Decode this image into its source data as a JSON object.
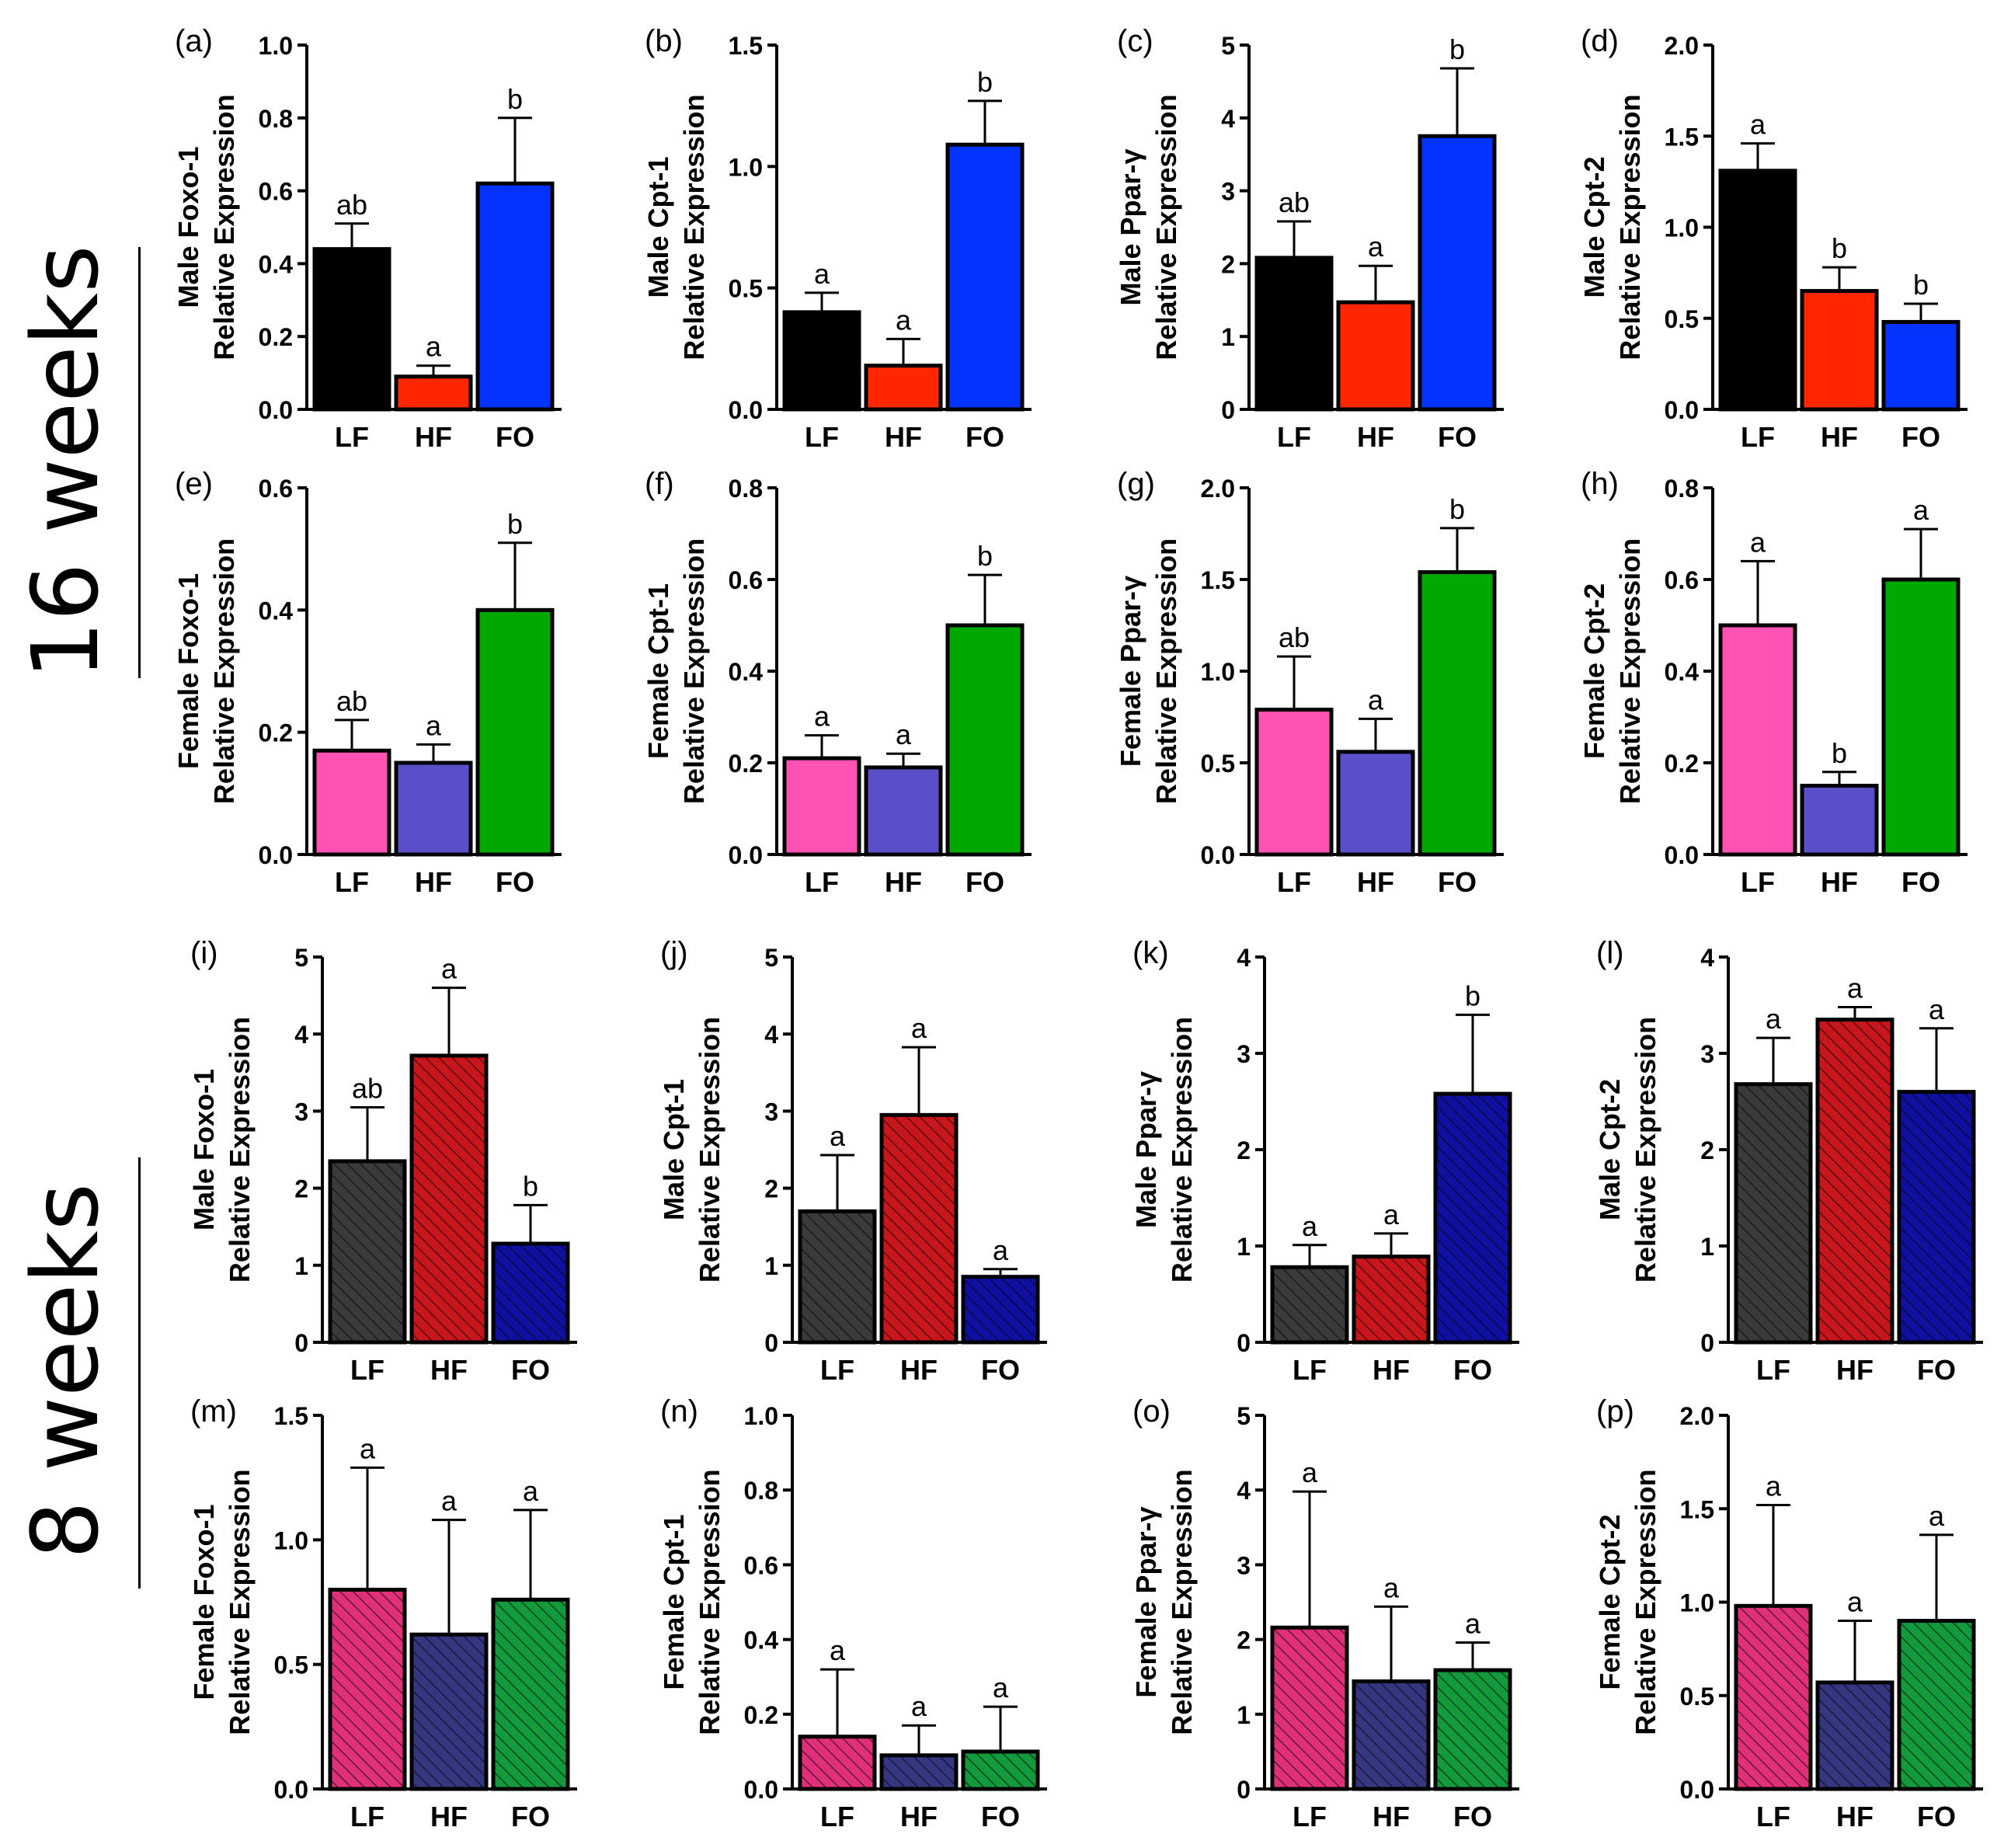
{
  "section_labels": [
    "16 weeks",
    "8 weeks"
  ],
  "chart_data": [
    {
      "panel": "(a)",
      "type": "bar",
      "ylabel_top": "Male Foxo-1",
      "ylabel_bottom": "Relative Expression",
      "categories": [
        "LF",
        "HF",
        "FO"
      ],
      "values": [
        0.44,
        0.09,
        0.62
      ],
      "errors": [
        0.07,
        0.03,
        0.18
      ],
      "letters": [
        "ab",
        "a",
        "b"
      ],
      "colors": [
        "#000000",
        "#ff2600",
        "#0432ff"
      ],
      "hatched": false,
      "ylim": [
        0,
        1.0
      ],
      "ticks": [
        0,
        0.2,
        0.4,
        0.6,
        0.8,
        1.0
      ],
      "tick_labels": [
        "0.0",
        "0.2",
        "0.4",
        "0.6",
        "0.8",
        "1.0"
      ]
    },
    {
      "panel": "(b)",
      "type": "bar",
      "ylabel_top": "Male Cpt-1",
      "ylabel_bottom": "Relative Expression",
      "categories": [
        "LF",
        "HF",
        "FO"
      ],
      "values": [
        0.4,
        0.18,
        1.09
      ],
      "errors": [
        0.08,
        0.11,
        0.18
      ],
      "letters": [
        "a",
        "a",
        "b"
      ],
      "colors": [
        "#000000",
        "#ff2600",
        "#0432ff"
      ],
      "hatched": false,
      "ylim": [
        0,
        1.5
      ],
      "ticks": [
        0,
        0.5,
        1.0,
        1.5
      ],
      "tick_labels": [
        "0.0",
        "0.5",
        "1.0",
        "1.5"
      ]
    },
    {
      "panel": "(c)",
      "type": "bar",
      "ylabel_top": "Male Ppar-γ",
      "ylabel_bottom": "Relative Expression",
      "categories": [
        "LF",
        "HF",
        "FO"
      ],
      "values": [
        2.08,
        1.47,
        3.75
      ],
      "errors": [
        0.5,
        0.5,
        0.93
      ],
      "letters": [
        "ab",
        "a",
        "b"
      ],
      "colors": [
        "#000000",
        "#ff2600",
        "#0432ff"
      ],
      "hatched": false,
      "ylim": [
        0,
        5
      ],
      "ticks": [
        0,
        1,
        2,
        3,
        4,
        5
      ],
      "tick_labels": [
        "0",
        "1",
        "2",
        "3",
        "4",
        "5"
      ]
    },
    {
      "panel": "(d)",
      "type": "bar",
      "ylabel_top": "Male Cpt-2",
      "ylabel_bottom": "Relative Expression",
      "categories": [
        "LF",
        "HF",
        "FO"
      ],
      "values": [
        1.31,
        0.65,
        0.48
      ],
      "errors": [
        0.15,
        0.13,
        0.1
      ],
      "letters": [
        "a",
        "b",
        "b"
      ],
      "colors": [
        "#000000",
        "#ff2600",
        "#0432ff"
      ],
      "hatched": false,
      "ylim": [
        0,
        2.0
      ],
      "ticks": [
        0,
        0.5,
        1.0,
        1.5,
        2.0
      ],
      "tick_labels": [
        "0.0",
        "0.5",
        "1.0",
        "1.5",
        "2.0"
      ]
    },
    {
      "panel": "(e)",
      "type": "bar",
      "ylabel_top": "Female Foxo-1",
      "ylabel_bottom": "Relative Expression",
      "categories": [
        "LF",
        "HF",
        "FO"
      ],
      "values": [
        0.17,
        0.15,
        0.4
      ],
      "errors": [
        0.05,
        0.03,
        0.11
      ],
      "letters": [
        "ab",
        "a",
        "b"
      ],
      "colors": [
        "#ff52b5",
        "#5a4fc8",
        "#00a800"
      ],
      "hatched": false,
      "ylim": [
        0,
        0.6
      ],
      "ticks": [
        0,
        0.2,
        0.4,
        0.6
      ],
      "tick_labels": [
        "0.0",
        "0.2",
        "0.4",
        "0.6"
      ]
    },
    {
      "panel": "(f)",
      "type": "bar",
      "ylabel_top": "Female Cpt-1",
      "ylabel_bottom": "Relative Expression",
      "categories": [
        "LF",
        "HF",
        "FO"
      ],
      "values": [
        0.21,
        0.19,
        0.5
      ],
      "errors": [
        0.05,
        0.03,
        0.11
      ],
      "letters": [
        "a",
        "a",
        "b"
      ],
      "colors": [
        "#ff52b5",
        "#5a4fc8",
        "#00a800"
      ],
      "hatched": false,
      "ylim": [
        0,
        0.8
      ],
      "ticks": [
        0,
        0.2,
        0.4,
        0.6,
        0.8
      ],
      "tick_labels": [
        "0.0",
        "0.2",
        "0.4",
        "0.6",
        "0.8"
      ]
    },
    {
      "panel": "(g)",
      "type": "bar",
      "ylabel_top": "Female Ppar-γ",
      "ylabel_bottom": "Relative Expression",
      "categories": [
        "LF",
        "HF",
        "FO"
      ],
      "values": [
        0.79,
        0.56,
        1.54
      ],
      "errors": [
        0.29,
        0.18,
        0.24
      ],
      "letters": [
        "ab",
        "a",
        "b"
      ],
      "colors": [
        "#ff52b5",
        "#5a4fc8",
        "#00a800"
      ],
      "hatched": false,
      "ylim": [
        0,
        2.0
      ],
      "ticks": [
        0,
        0.5,
        1.0,
        1.5,
        2.0
      ],
      "tick_labels": [
        "0.0",
        "0.5",
        "1.0",
        "1.5",
        "2.0"
      ]
    },
    {
      "panel": "(h)",
      "type": "bar",
      "ylabel_top": "Female Cpt-2",
      "ylabel_bottom": "Relative Expression",
      "categories": [
        "LF",
        "HF",
        "FO"
      ],
      "values": [
        0.5,
        0.15,
        0.6
      ],
      "errors": [
        0.14,
        0.03,
        0.11
      ],
      "letters": [
        "a",
        "b",
        "a"
      ],
      "colors": [
        "#ff52b5",
        "#5a4fc8",
        "#00a800"
      ],
      "hatched": false,
      "ylim": [
        0,
        0.8
      ],
      "ticks": [
        0,
        0.2,
        0.4,
        0.6,
        0.8
      ],
      "tick_labels": [
        "0.0",
        "0.2",
        "0.4",
        "0.6",
        "0.8"
      ]
    },
    {
      "panel": "(i)",
      "type": "bar",
      "ylabel_top": "Male Foxo-1",
      "ylabel_bottom": "Relative Expression",
      "categories": [
        "LF",
        "HF",
        "FO"
      ],
      "values": [
        2.35,
        3.72,
        1.28
      ],
      "errors": [
        0.7,
        0.88,
        0.5
      ],
      "letters": [
        "ab",
        "a",
        "b"
      ],
      "colors": [
        "#3a3a3a",
        "#c8161d",
        "#1010a0"
      ],
      "hatched": true,
      "ylim": [
        0,
        5
      ],
      "ticks": [
        0,
        1,
        2,
        3,
        4,
        5
      ],
      "tick_labels": [
        "0",
        "1",
        "2",
        "3",
        "4",
        "5"
      ]
    },
    {
      "panel": "(j)",
      "type": "bar",
      "ylabel_top": "Male Cpt-1",
      "ylabel_bottom": "Relative Expression",
      "categories": [
        "LF",
        "HF",
        "FO"
      ],
      "values": [
        1.7,
        2.95,
        0.85
      ],
      "errors": [
        0.73,
        0.88,
        0.1
      ],
      "letters": [
        "a",
        "a",
        "a"
      ],
      "colors": [
        "#3a3a3a",
        "#c8161d",
        "#1010a0"
      ],
      "hatched": true,
      "ylim": [
        0,
        5
      ],
      "ticks": [
        0,
        1,
        2,
        3,
        4,
        5
      ],
      "tick_labels": [
        "0",
        "1",
        "2",
        "3",
        "4",
        "5"
      ]
    },
    {
      "panel": "(k)",
      "type": "bar",
      "ylabel_top": "Male Ppar-γ",
      "ylabel_bottom": "Relative Expression",
      "categories": [
        "LF",
        "HF",
        "FO"
      ],
      "values": [
        0.78,
        0.89,
        2.58
      ],
      "errors": [
        0.23,
        0.24,
        0.82
      ],
      "letters": [
        "a",
        "a",
        "b"
      ],
      "colors": [
        "#3a3a3a",
        "#c8161d",
        "#1010a0"
      ],
      "hatched": true,
      "ylim": [
        0,
        4
      ],
      "ticks": [
        0,
        1,
        2,
        3,
        4
      ],
      "tick_labels": [
        "0",
        "1",
        "2",
        "3",
        "4"
      ]
    },
    {
      "panel": "(l)",
      "type": "bar",
      "ylabel_top": "Male Cpt-2",
      "ylabel_bottom": "Relative Expression",
      "categories": [
        "LF",
        "HF",
        "FO"
      ],
      "values": [
        2.68,
        3.35,
        2.6
      ],
      "errors": [
        0.48,
        0.13,
        0.66
      ],
      "letters": [
        "a",
        "a",
        "a"
      ],
      "colors": [
        "#3a3a3a",
        "#c8161d",
        "#1010a0"
      ],
      "hatched": true,
      "ylim": [
        0,
        4
      ],
      "ticks": [
        0,
        1,
        2,
        3,
        4
      ],
      "tick_labels": [
        "0",
        "1",
        "2",
        "3",
        "4"
      ]
    },
    {
      "panel": "(m)",
      "type": "bar",
      "ylabel_top": "Female Foxo-1",
      "ylabel_bottom": "Relative Expression",
      "categories": [
        "LF",
        "HF",
        "FO"
      ],
      "values": [
        0.8,
        0.62,
        0.76
      ],
      "errors": [
        0.49,
        0.46,
        0.36
      ],
      "letters": [
        "a",
        "a",
        "a"
      ],
      "colors": [
        "#e0307a",
        "#353580",
        "#139a3c"
      ],
      "hatched": true,
      "ylim": [
        0,
        1.5
      ],
      "ticks": [
        0,
        0.5,
        1.0,
        1.5
      ],
      "tick_labels": [
        "0.0",
        "0.5",
        "1.0",
        "1.5"
      ]
    },
    {
      "panel": "(n)",
      "type": "bar",
      "ylabel_top": "Female Cpt-1",
      "ylabel_bottom": "Relative Expression",
      "categories": [
        "LF",
        "HF",
        "FO"
      ],
      "values": [
        0.14,
        0.09,
        0.1
      ],
      "errors": [
        0.18,
        0.08,
        0.12
      ],
      "letters": [
        "a",
        "a",
        "a"
      ],
      "colors": [
        "#e0307a",
        "#353580",
        "#139a3c"
      ],
      "hatched": true,
      "ylim": [
        0,
        1.0
      ],
      "ticks": [
        0,
        0.2,
        0.4,
        0.6,
        0.8,
        1.0
      ],
      "tick_labels": [
        "0.0",
        "0.2",
        "0.4",
        "0.6",
        "0.8",
        "1.0"
      ]
    },
    {
      "panel": "(o)",
      "type": "bar",
      "ylabel_top": "Female Ppar-γ",
      "ylabel_bottom": "Relative Expression",
      "categories": [
        "LF",
        "HF",
        "FO"
      ],
      "values": [
        2.16,
        1.44,
        1.59
      ],
      "errors": [
        1.82,
        1.0,
        0.37
      ],
      "letters": [
        "a",
        "a",
        "a"
      ],
      "colors": [
        "#e0307a",
        "#353580",
        "#139a3c"
      ],
      "hatched": true,
      "ylim": [
        0,
        5
      ],
      "ticks": [
        0,
        1,
        2,
        3,
        4,
        5
      ],
      "tick_labels": [
        "0",
        "1",
        "2",
        "3",
        "4",
        "5"
      ]
    },
    {
      "panel": "(p)",
      "type": "bar",
      "ylabel_top": "Female Cpt-2",
      "ylabel_bottom": "Relative Expression",
      "categories": [
        "LF",
        "HF",
        "FO"
      ],
      "values": [
        0.98,
        0.57,
        0.9
      ],
      "errors": [
        0.54,
        0.33,
        0.46
      ],
      "letters": [
        "a",
        "a",
        "a"
      ],
      "colors": [
        "#e0307a",
        "#353580",
        "#139a3c"
      ],
      "hatched": true,
      "ylim": [
        0,
        2.0
      ],
      "ticks": [
        0,
        0.5,
        1.0,
        1.5,
        2.0
      ],
      "tick_labels": [
        "0.0",
        "0.5",
        "1.0",
        "1.5",
        "2.0"
      ]
    }
  ]
}
